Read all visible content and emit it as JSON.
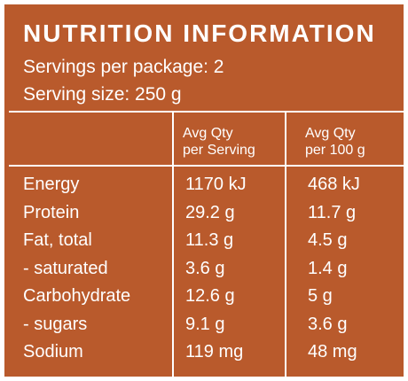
{
  "panel": {
    "title": "NUTRITION INFORMATION",
    "servings": "Servings per package: 2",
    "serving_size": "Serving size: 250 g",
    "background": "#b95a2c",
    "text_color": "#ffffff"
  },
  "table": {
    "headers": [
      {
        "line1": "",
        "line2": ""
      },
      {
        "line1": "Avg Qty",
        "line2": "per Serving"
      },
      {
        "line1": "Avg Qty",
        "line2": "per 100 g"
      }
    ],
    "rows": [
      {
        "name": "Energy",
        "per_serving": "1170 kJ",
        "per_100g": "468 kJ"
      },
      {
        "name": "Protein",
        "per_serving": "29.2 g",
        "per_100g": "11.7 g"
      },
      {
        "name": "Fat, total",
        "per_serving": "11.3 g",
        "per_100g": "4.5 g"
      },
      {
        "name": "- saturated",
        "per_serving": "3.6 g",
        "per_100g": "1.4 g"
      },
      {
        "name": "Carbohydrate",
        "per_serving": "12.6 g",
        "per_100g": "5 g"
      },
      {
        "name": "- sugars",
        "per_serving": "9.1 g",
        "per_100g": "3.6 g"
      },
      {
        "name": "Sodium",
        "per_serving": "119 mg",
        "per_100g": "48 mg"
      }
    ]
  }
}
